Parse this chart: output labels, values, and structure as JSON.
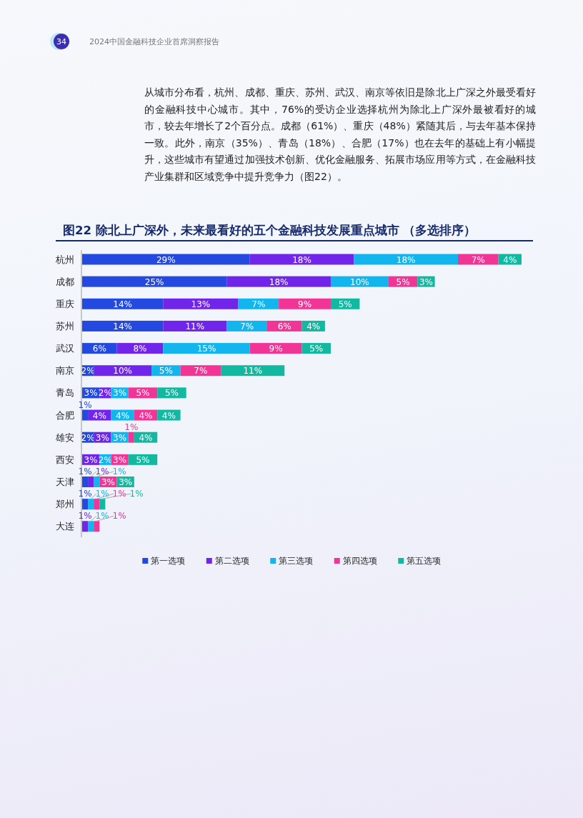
{
  "chart_data": {
    "type": "bar",
    "orientation": "horizontal",
    "stacked": true,
    "legend": "bottom",
    "title": "图22  除北上广深外，未来最看好的五个金融科技发展重点城市 （多选排序）",
    "annotations": [
      "34",
      "2024中国金融科技企业首席洞察报告",
      "从城市分布看，杭州、成都、重庆、苏州、武汉、南京等依旧是除北上广深之外最受看好的金融科技中心城市。其中，76%的受访企业选择杭州为除北上广深外最被看好的城市，较去年增长了2个百分点。成都（61%）、重庆（48%）紧随其后，与去年基本保持一致。此外，南京（35%）、青岛（18%）、合肥（17%）也在去年的基础上有小幅提升，这些城市有望通过加强技术创新、优化金融服务、拓展市场应用等方式，在金融科技产业集群和区域竞争中提升竞争力（图22）。"
    ],
    "categories": [
      "杭州",
      "成都",
      "重庆",
      "苏州",
      "武汉",
      "南京",
      "青岛",
      "合肥",
      "雄安",
      "西安",
      "天津",
      "郑州",
      "大连"
    ],
    "series": [
      {
        "name": "第一选项",
        "color": "#2349e0",
        "values": [
          29,
          25,
          14,
          14,
          6,
          2,
          3,
          1,
          2,
          null,
          1,
          1,
          null
        ],
        "value_labels": [
          "29%",
          "25%",
          "14%",
          "14%",
          "6%",
          "2%",
          "3%",
          "1%",
          "2%",
          null,
          "1%",
          "1%",
          null
        ]
      },
      {
        "name": "第二选项",
        "color": "#7124ea",
        "values": [
          18,
          18,
          13,
          11,
          8,
          10,
          2,
          4,
          3,
          3,
          1,
          null,
          1
        ],
        "value_labels": [
          "18%",
          "18%",
          "13%",
          "11%",
          "8%",
          "10%",
          "2%",
          "4%",
          "3%",
          "3%",
          "1%",
          null,
          "1%"
        ]
      },
      {
        "name": "第三选项",
        "color": "#13b5ee",
        "values": [
          18,
          10,
          7,
          7,
          15,
          5,
          3,
          4,
          3,
          2,
          1,
          1,
          1
        ],
        "value_labels": [
          "18%",
          "10%",
          "7%",
          "7%",
          "15%",
          "5%",
          "3%",
          "4%",
          "3%",
          "2%",
          "1%",
          "1%",
          "1%"
        ]
      },
      {
        "name": "第四选项",
        "color": "#f03596",
        "values": [
          7,
          5,
          9,
          6,
          9,
          7,
          5,
          4,
          1,
          3,
          3,
          1,
          1
        ],
        "value_labels": [
          "7%",
          "5%",
          "9%",
          "6%",
          "9%",
          "7%",
          "5%",
          "4%",
          "1%",
          "3%",
          "3%",
          "1%",
          "1%"
        ]
      },
      {
        "name": "第五选项",
        "color": "#13b8a0",
        "values": [
          4,
          3,
          5,
          4,
          5,
          11,
          5,
          4,
          4,
          5,
          3,
          1,
          null
        ],
        "value_labels": [
          "4%",
          "3%",
          "5%",
          "4%",
          "5%",
          "11%",
          "5%",
          "4%",
          "4%",
          "5%",
          "3%",
          "1%",
          null
        ]
      }
    ]
  }
}
